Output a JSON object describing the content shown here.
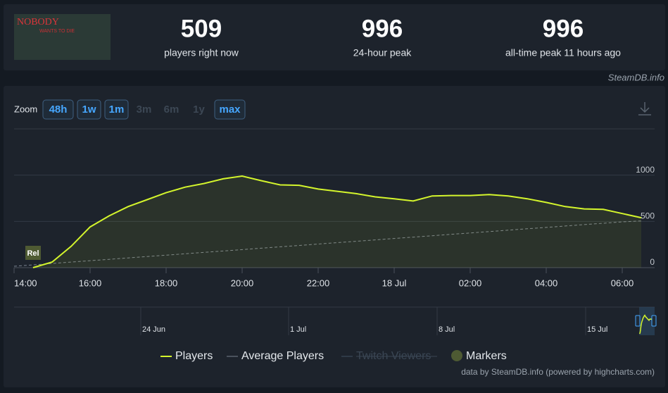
{
  "header": {
    "image_text": [
      "NOBODY",
      "WANTS TO DIE"
    ],
    "site": "SteamDB.info",
    "stats": [
      {
        "value": 509,
        "label": "players right now"
      },
      {
        "value": 996,
        "label": "24-hour peak"
      },
      {
        "value": 996,
        "label": "all-time peak 11 hours ago"
      }
    ]
  },
  "zoom": {
    "label": "Zoom",
    "buttons": [
      {
        "label": "48h",
        "state": "outlined"
      },
      {
        "label": "1w",
        "state": "outlined"
      },
      {
        "label": "1m",
        "state": "outlined"
      },
      {
        "label": "3m",
        "state": "disabled"
      },
      {
        "label": "6m",
        "state": "disabled"
      },
      {
        "label": "1y",
        "state": "disabled"
      },
      {
        "label": "max",
        "state": "outlined"
      }
    ]
  },
  "chart_data": {
    "type": "line",
    "categories": [
      "14:00",
      null,
      null,
      null,
      "16:00",
      null,
      null,
      null,
      "18:00",
      null,
      null,
      null,
      "20:00",
      null,
      null,
      null,
      "22:00",
      null,
      null,
      null,
      "18 Jul",
      null,
      null,
      null,
      "02:00",
      null,
      null,
      null,
      "04:00",
      null,
      null,
      null,
      "06:00",
      null
    ],
    "series": [
      {
        "name": "Players",
        "color": "#d4f52c",
        "values": [
          null,
          0,
          60,
          230,
          440,
          560,
          660,
          735,
          810,
          870,
          910,
          960,
          990,
          940,
          895,
          890,
          850,
          825,
          800,
          765,
          745,
          720,
          775,
          780,
          780,
          790,
          775,
          745,
          705,
          660,
          635,
          630,
          585,
          540
        ]
      },
      {
        "name": "Average Players",
        "color": "#7a8290",
        "dashed": true,
        "values": [
          15,
          30,
          45,
          60,
          75,
          90,
          105,
          120,
          135,
          150,
          165,
          180,
          195,
          210,
          225,
          240,
          255,
          270,
          285,
          300,
          315,
          330,
          345,
          360,
          375,
          390,
          405,
          420,
          435,
          450,
          465,
          480,
          495,
          505
        ]
      }
    ],
    "hidden_series": [
      "Twitch Viewers"
    ],
    "markers": {
      "name": "Markers",
      "labels": [
        "Rel"
      ]
    },
    "ylim": [
      0,
      1500
    ],
    "yticks": [
      0,
      500,
      1000
    ],
    "grid": true,
    "navigator_labels": [
      "24 Jun",
      "1 Jul",
      "8 Jul",
      "15 Jul"
    ],
    "credits": "data by SteamDB.info (powered by highcharts.com)"
  }
}
